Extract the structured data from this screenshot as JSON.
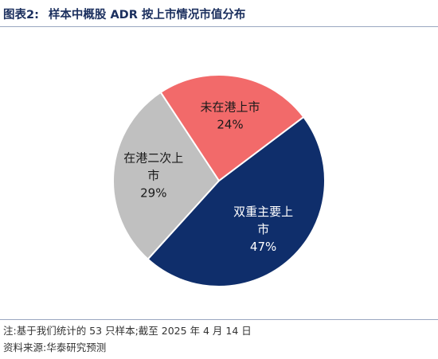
{
  "header": {
    "figure_label": "图表2:",
    "title": "样本中概股 ADR 按上市情况市值分布"
  },
  "chart_data": {
    "type": "pie",
    "title": "样本中概股 ADR 按上市情况市值分布",
    "slices": [
      {
        "name": "双重主要上市",
        "value": 47,
        "value_label": "47%",
        "color": "#0f2e6b",
        "text_color": "#ffffff",
        "label_lines": [
          "双重主要上",
          "市",
          "47%"
        ]
      },
      {
        "name": "在港二次上市",
        "value": 29,
        "value_label": "29%",
        "color": "#c0c0c0",
        "text_color": "#1a1a1a",
        "label_lines": [
          "在港二次上",
          "市",
          "29%"
        ]
      },
      {
        "name": "未在港上市",
        "value": 24,
        "value_label": "24%",
        "color": "#f26a6a",
        "text_color": "#1a1a1a",
        "label_lines": [
          "未在港上市",
          "24%"
        ]
      }
    ],
    "start_angle_deg": 53,
    "direction": "clockwise",
    "edge_color": "#ffffff"
  },
  "footnotes": {
    "note": "注:基于我们统计的 53 只样本;截至 2025 年 4 月 14 日",
    "source": "资料来源:华泰研究预测"
  }
}
